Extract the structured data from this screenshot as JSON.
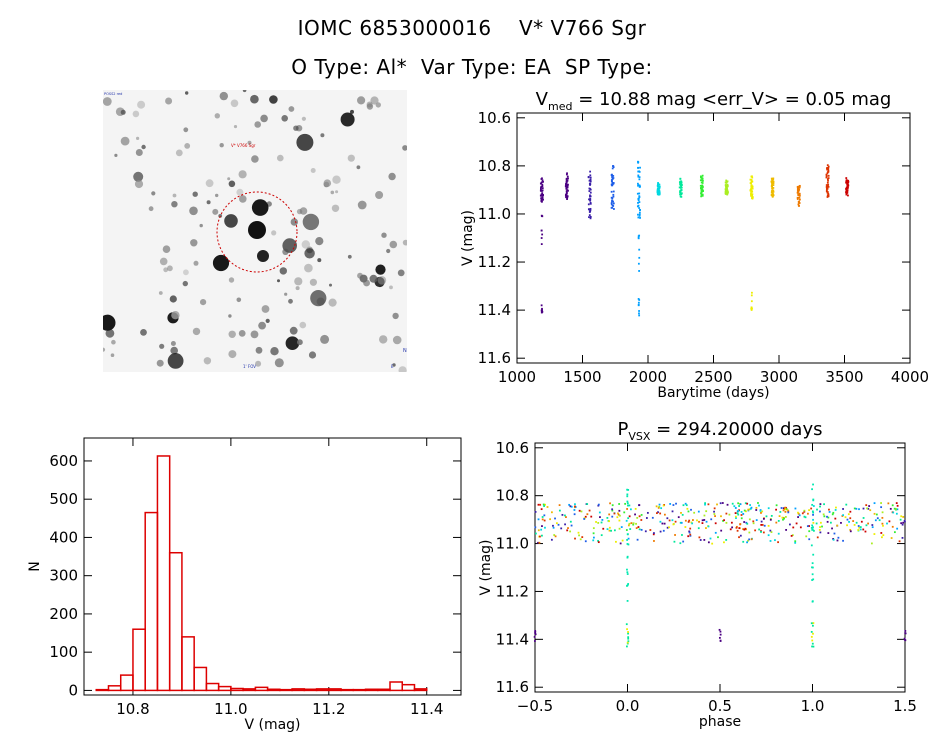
{
  "header": {
    "line1": "IOMC 6853000016    V* V766 Sgr",
    "line2": "O Type: Al*  Var Type: EA  SP Type:"
  },
  "image_panel": {
    "marker_label": "V* V766 Sgr",
    "corner_labels": [
      "POSS2 red",
      "N",
      "E",
      "1' FOV"
    ],
    "background": "#ffffff",
    "circle_color": "#cc0000"
  },
  "chart_data": [
    {
      "type": "scatter",
      "id": "lightcurve",
      "title_main": "V",
      "title_sub": "med",
      "title_rest": " = 10.88 mag <err_V> = 0.05 mag",
      "xlabel": "Barytime (days)",
      "ylabel": "V (mag)",
      "xlim": [
        1000,
        4000
      ],
      "ylim": [
        11.62,
        10.58
      ],
      "y_inverted": true,
      "xticks": [
        1000,
        1500,
        2000,
        2500,
        3000,
        3500,
        4000
      ],
      "yticks": [
        10.6,
        10.8,
        11.0,
        11.2,
        11.4,
        11.6
      ],
      "x_tick_labels": [
        "1000",
        "1500",
        "2000",
        "2500",
        "3000",
        "3500",
        "4000"
      ],
      "y_tick_labels": [
        "10.6",
        "10.8",
        "11.0",
        "11.2",
        "11.4",
        "11.6"
      ],
      "color_scale": [
        "#4b0082",
        "#3a1fa8",
        "#1e5ee8",
        "#00a0ff",
        "#00d8e0",
        "#00e89a",
        "#33ee33",
        "#aaee22",
        "#eeee00",
        "#eebb00",
        "#ee7a00",
        "#dd3300",
        "#cc0000"
      ],
      "seasons": [
        {
          "x": 1190,
          "y": [
            10.85,
            10.95
          ],
          "dip": [
            11.0,
            11.15
          ],
          "low": [
            11.35,
            11.41
          ]
        },
        {
          "x": 1380,
          "y": [
            10.83,
            10.94
          ]
        },
        {
          "x": 1555,
          "y": [
            10.82,
            11.02
          ]
        },
        {
          "x": 1730,
          "y": [
            10.8,
            10.98
          ]
        },
        {
          "x": 1930,
          "y": [
            10.78,
            11.02
          ],
          "dip": [
            11.05,
            11.3
          ],
          "low": [
            11.35,
            11.44
          ]
        },
        {
          "x": 2080,
          "y": [
            10.87,
            10.92
          ]
        },
        {
          "x": 2250,
          "y": [
            10.85,
            10.93
          ]
        },
        {
          "x": 2410,
          "y": [
            10.84,
            10.93
          ]
        },
        {
          "x": 2600,
          "y": [
            10.86,
            10.92
          ]
        },
        {
          "x": 2790,
          "y": [
            10.84,
            10.94
          ],
          "low": [
            11.3,
            11.43
          ]
        },
        {
          "x": 2950,
          "y": [
            10.85,
            10.93
          ]
        },
        {
          "x": 3150,
          "y": [
            10.88,
            10.97
          ]
        },
        {
          "x": 3370,
          "y": [
            10.79,
            10.93
          ]
        },
        {
          "x": 3520,
          "y": [
            10.85,
            10.93
          ]
        }
      ]
    },
    {
      "type": "bar",
      "id": "histogram",
      "xlabel": "V (mag)",
      "ylabel": "N",
      "xlim": [
        10.7,
        11.47
      ],
      "ylim": [
        -12,
        660
      ],
      "xticks": [
        10.8,
        11.0,
        11.2,
        11.4
      ],
      "yticks": [
        0,
        100,
        200,
        300,
        400,
        500,
        600
      ],
      "x_tick_labels": [
        "10.8",
        "11.0",
        "11.2",
        "11.4"
      ],
      "y_tick_labels": [
        "0",
        "100",
        "200",
        "300",
        "400",
        "500",
        "600"
      ],
      "bin_start": 10.725,
      "bin_width": 0.025,
      "values": [
        2,
        12,
        40,
        160,
        465,
        613,
        360,
        140,
        60,
        18,
        10,
        5,
        4,
        8,
        3,
        2,
        4,
        3,
        4,
        4,
        2,
        2,
        3,
        3,
        22,
        15,
        4
      ],
      "bar_color": "#dd0000"
    },
    {
      "type": "scatter",
      "id": "phased",
      "title_main": "P",
      "title_sub": "VSX",
      "title_rest": " = 294.20000 days",
      "xlabel": "phase",
      "ylabel": "V (mag)",
      "xlim": [
        -0.5,
        1.5
      ],
      "ylim": [
        11.62,
        10.58
      ],
      "y_inverted": true,
      "xticks": [
        -0.5,
        0.0,
        0.5,
        1.0,
        1.5
      ],
      "yticks": [
        10.6,
        10.8,
        11.0,
        11.2,
        11.4,
        11.6
      ],
      "x_tick_labels": [
        "−0.5",
        "0.0",
        "0.5",
        "1.0",
        "1.5"
      ],
      "y_tick_labels": [
        "10.6",
        "10.8",
        "11.0",
        "11.2",
        "11.4",
        "11.6"
      ],
      "period_days": 294.2
    }
  ]
}
